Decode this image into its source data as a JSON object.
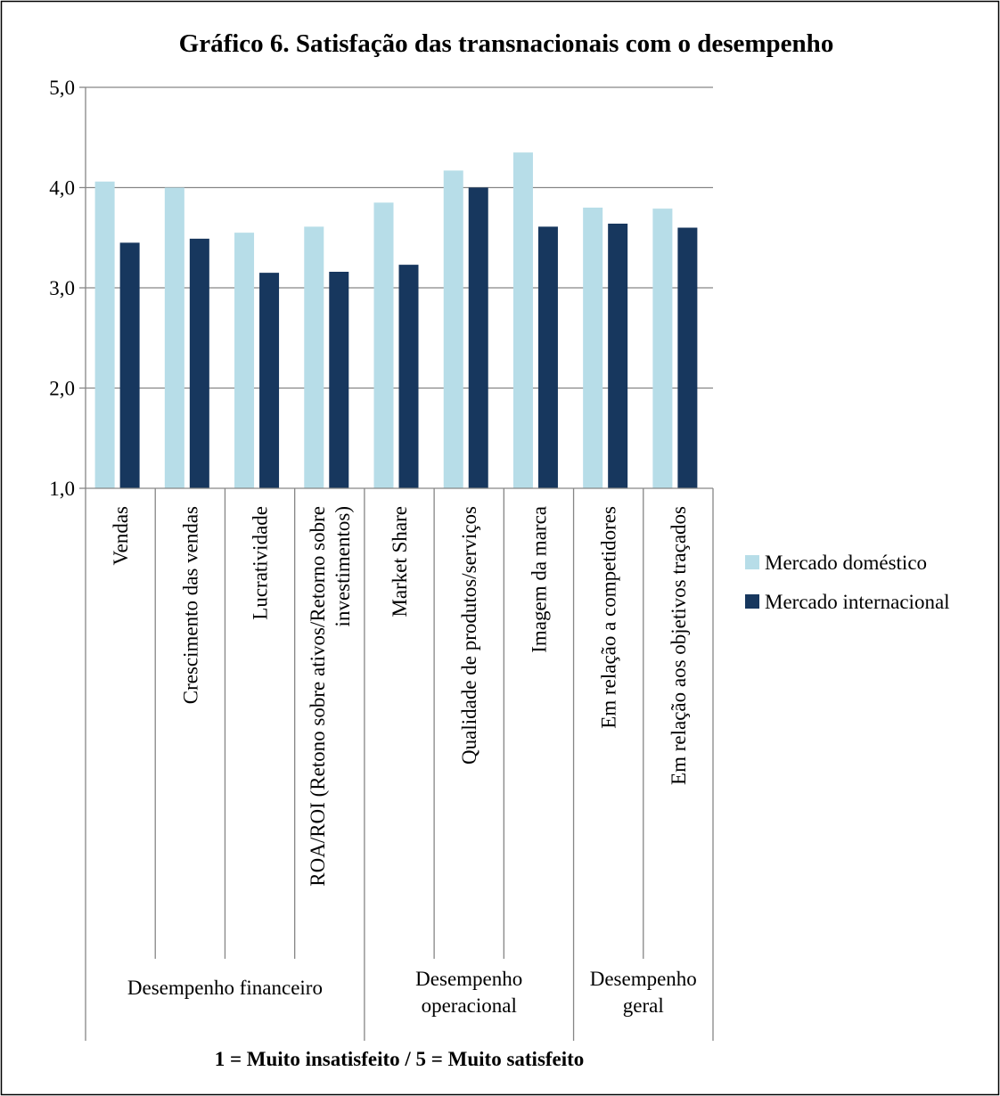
{
  "chart_data": {
    "type": "bar",
    "title": "Gráfico 6. Satisfação das transnacionais com o desempenho",
    "xlabel": "1 = Muito insatisfeito / 5 = Muito satisfeito",
    "ylabel": "",
    "ylim": [
      1,
      5
    ],
    "yticks": [
      "1,0",
      "2,0",
      "3,0",
      "4,0",
      "5,0"
    ],
    "grid": true,
    "legend_position": "right",
    "categories": [
      [
        "Vendas"
      ],
      [
        "Crescimento das vendas"
      ],
      [
        "Lucratividade"
      ],
      [
        "ROA/ROI (Retono sobre ativos/Retorno sobre",
        "investimentos)"
      ],
      [
        "Market Share"
      ],
      [
        "Qualidade de produtos/serviços"
      ],
      [
        "Imagem da marca"
      ],
      [
        "Em relação a competidores"
      ],
      [
        "Em relação aos objetivos traçados"
      ]
    ],
    "groups": [
      {
        "label": [
          "Desempenho financeiro"
        ],
        "start": 0,
        "end": 3
      },
      {
        "label": [
          "Desempenho",
          "operacional"
        ],
        "start": 4,
        "end": 6
      },
      {
        "label": [
          "Desempenho",
          "geral"
        ],
        "start": 7,
        "end": 8
      }
    ],
    "series": [
      {
        "name": "Mercado doméstico",
        "color": "#b7dde8",
        "values": [
          4.06,
          4.0,
          3.55,
          3.61,
          3.85,
          4.17,
          4.35,
          3.8,
          3.79
        ]
      },
      {
        "name": "Mercado internacional",
        "color": "#17375e",
        "values": [
          3.45,
          3.49,
          3.15,
          3.16,
          3.23,
          4.0,
          3.61,
          3.64,
          3.6
        ]
      }
    ]
  },
  "colors": {
    "grid": "#868686",
    "border": "#000000",
    "text": "#000000"
  }
}
